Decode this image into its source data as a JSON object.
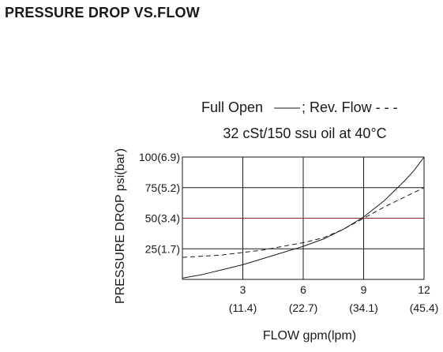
{
  "page": {
    "heading": "PRESSURE DROP VS.FLOW"
  },
  "chart_data": {
    "type": "line",
    "title_line1": "Full Open",
    "title_line1_suffix": "; Rev. Flow - - -",
    "title_line2": "32 cSt/150 ssu oil at 40°C",
    "xlabel": "FLOW gpm(lpm)",
    "ylabel": "PRESSURE DROP psi(bar)",
    "xlim": [
      0,
      12
    ],
    "ylim": [
      0,
      100
    ],
    "x_ticks": [
      {
        "value": 3,
        "label": "3",
        "sublabel": "(11.4)"
      },
      {
        "value": 6,
        "label": "6",
        "sublabel": "(22.7)"
      },
      {
        "value": 9,
        "label": "9",
        "sublabel": "(34.1)"
      },
      {
        "value": 12,
        "label": "12",
        "sublabel": "(45.4)"
      }
    ],
    "y_ticks": [
      {
        "value": 25,
        "label": "25(1.7)"
      },
      {
        "value": 50,
        "label": "50(3.4)"
      },
      {
        "value": 75,
        "label": "75(5.2)"
      },
      {
        "value": 100,
        "label": "100(6.9)"
      }
    ],
    "grid": true,
    "highlight_gridline": {
      "value": 50,
      "color": "#8b2a2a"
    },
    "series": [
      {
        "name": "Full Open",
        "style": "solid",
        "x": [
          0,
          1,
          2,
          3,
          4,
          5,
          6,
          7,
          8,
          9,
          10,
          10.5,
          11,
          11.5,
          12
        ],
        "y": [
          1,
          4,
          8,
          12,
          17,
          22,
          27,
          33,
          41,
          51,
          64,
          72,
          80,
          89,
          100
        ]
      },
      {
        "name": "Rev. Flow",
        "style": "dashed",
        "x": [
          0,
          1,
          2,
          3,
          4,
          5,
          6,
          7,
          8,
          9,
          10,
          11,
          12
        ],
        "y": [
          18,
          19,
          20,
          22,
          24,
          27,
          30,
          34,
          41,
          50,
          59,
          67,
          75
        ]
      }
    ],
    "colors": {
      "line": "#1a1a1a",
      "grid": "#1a1a1a",
      "highlight": "#8b2a2a"
    }
  }
}
